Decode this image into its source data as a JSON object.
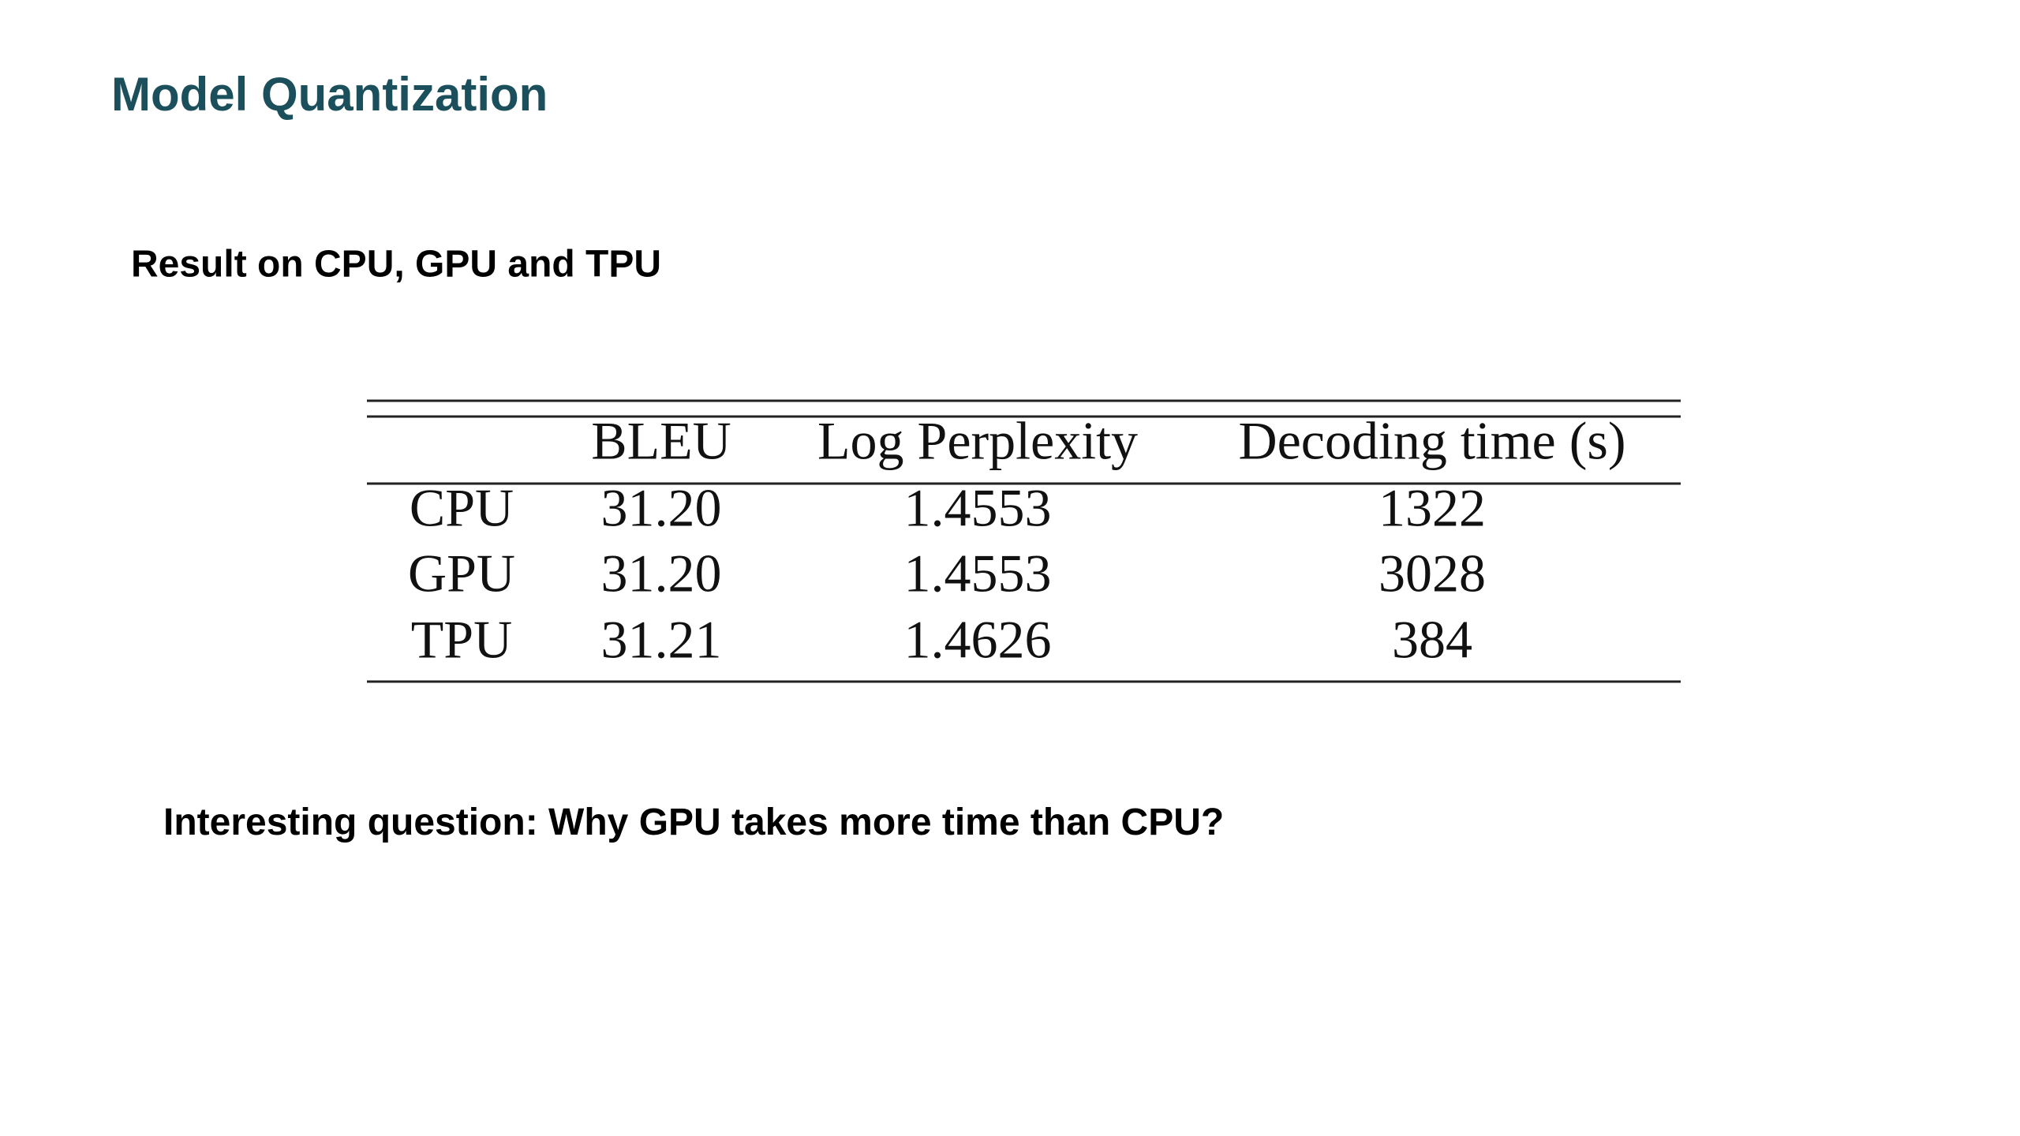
{
  "title": "Model Quantization",
  "subtitle": "Result on CPU, GPU and TPU",
  "table": {
    "header": [
      "",
      "BLEU",
      "Log Perplexity",
      "Decoding time (s)"
    ],
    "rows": [
      [
        "CPU",
        "31.20",
        "1.4553",
        "1322"
      ],
      [
        "GPU",
        "31.20",
        "1.4553",
        "3028"
      ],
      [
        "TPU",
        "31.21",
        "1.4626",
        "384"
      ]
    ]
  },
  "question": {
    "lead": "Interesting question:",
    "text": "Why GPU takes more time than CPU?"
  }
}
